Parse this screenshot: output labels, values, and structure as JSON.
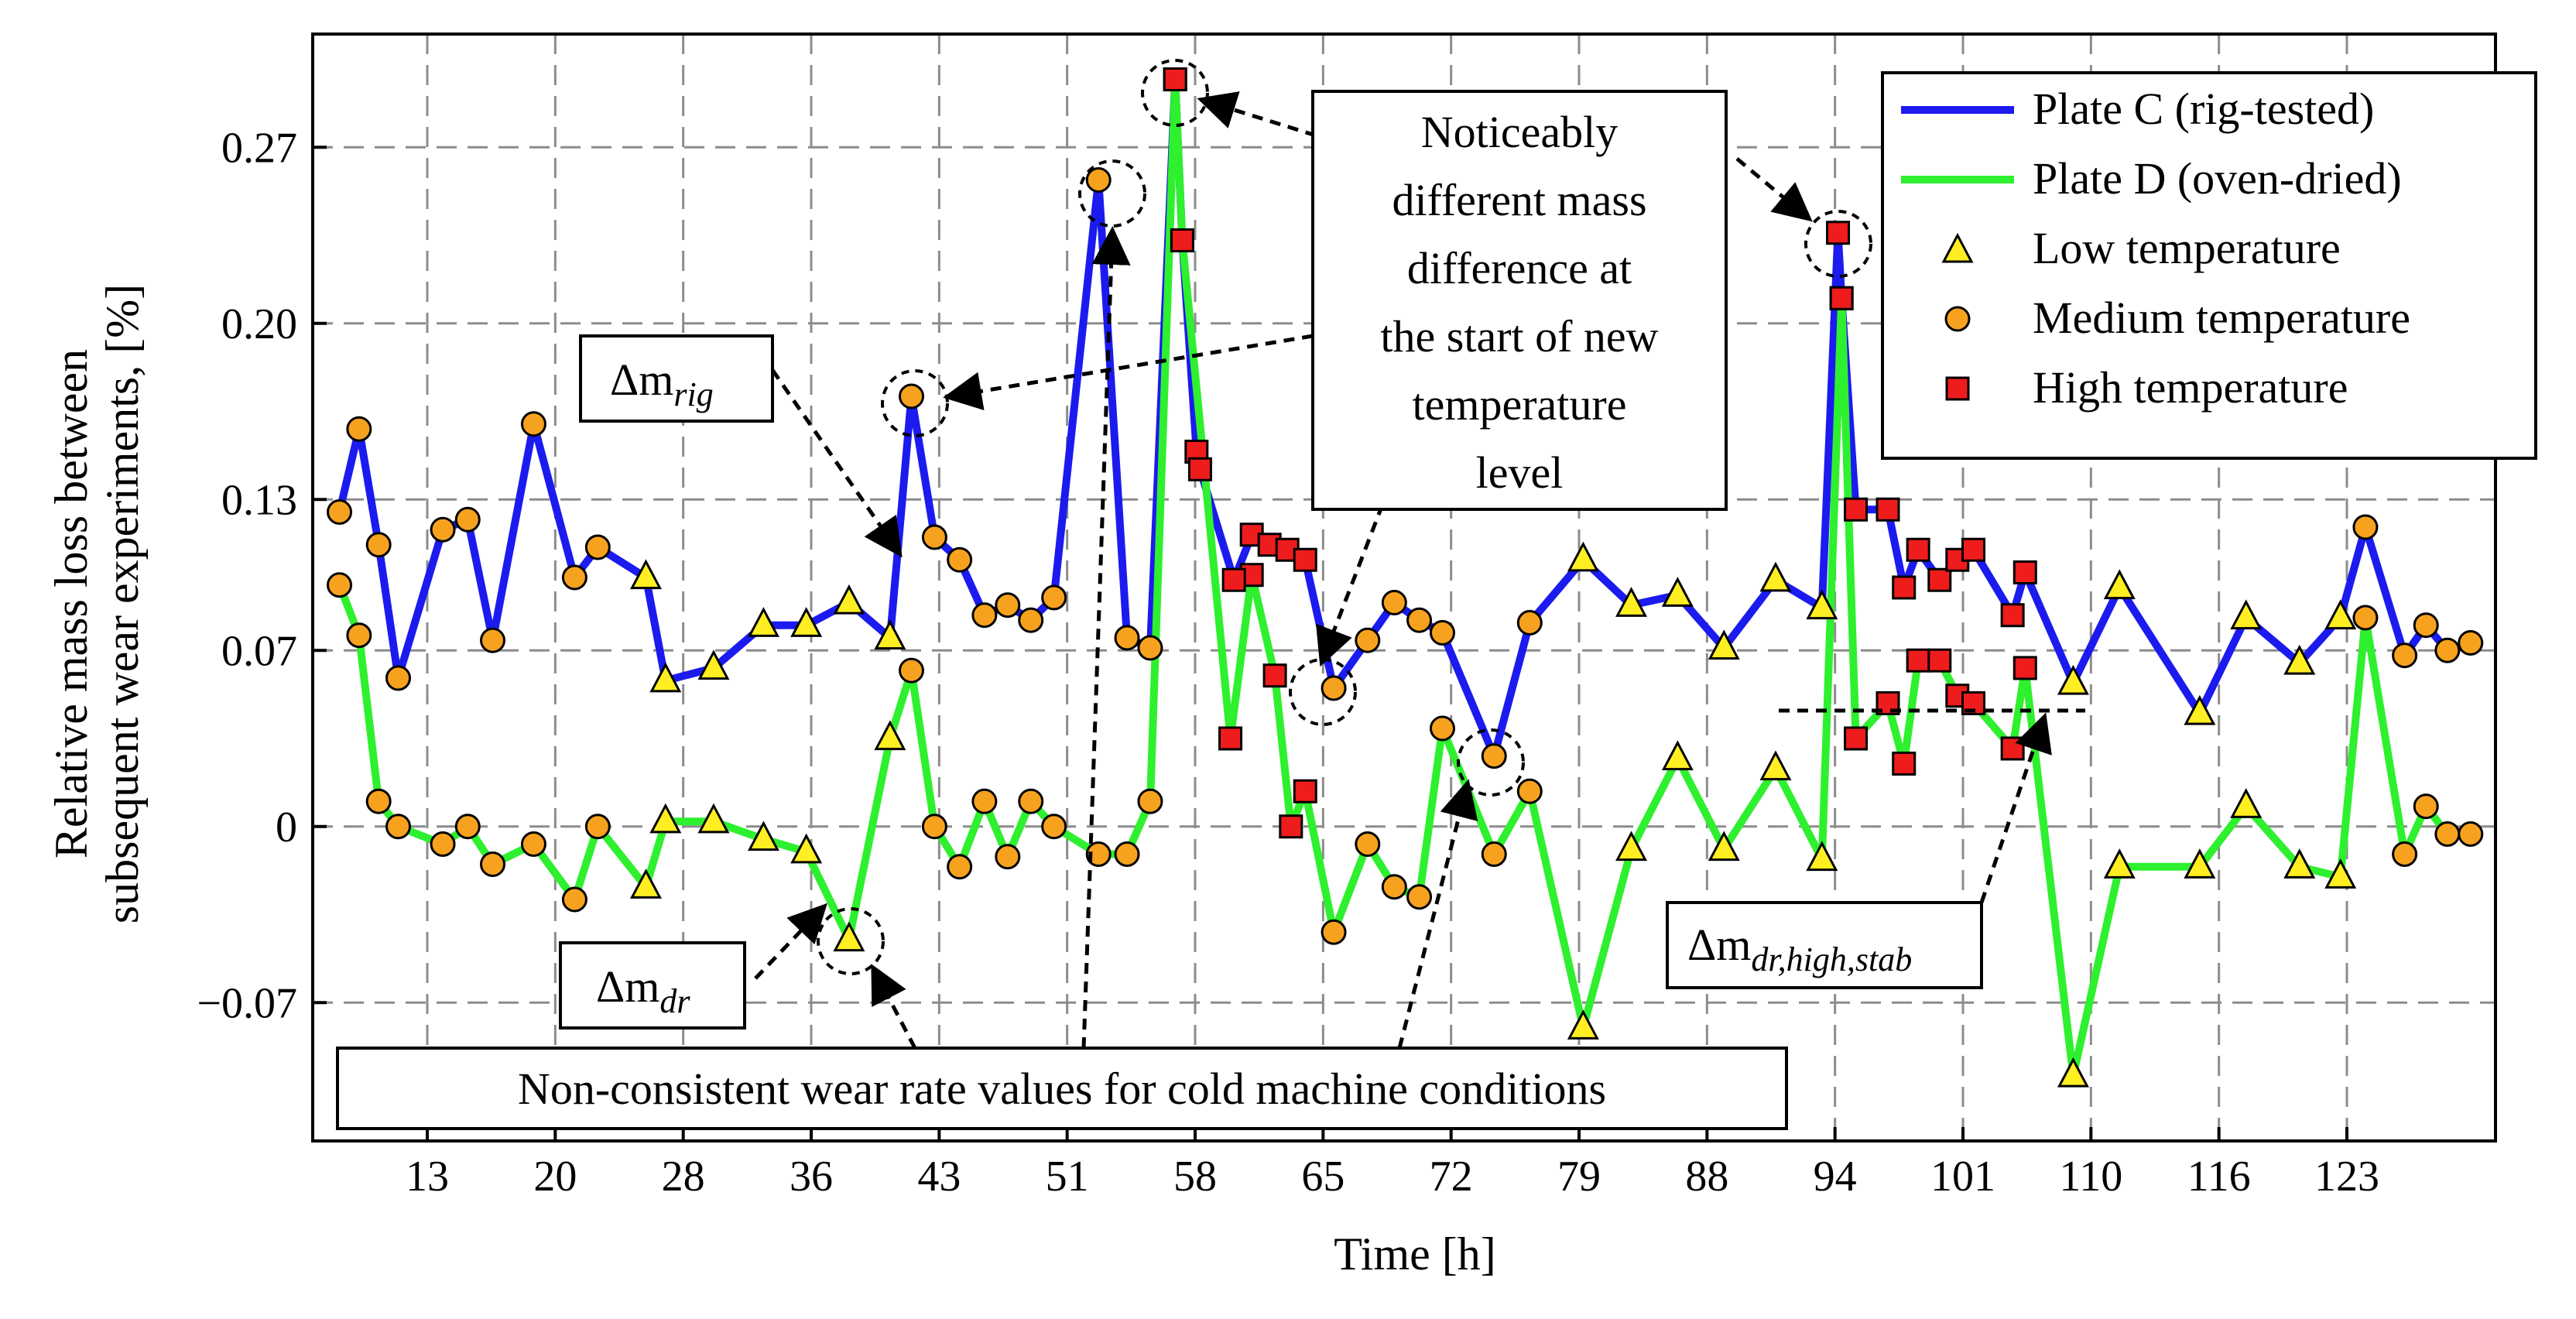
{
  "chart_data": {
    "type": "line",
    "title": "",
    "xlabel": "Time [h]",
    "ylabel_lines": [
      "Relative mass loss between",
      "subsequent wear experiments, [%]"
    ],
    "x_ticks": [
      "13",
      "20",
      "28",
      "36",
      "43",
      "51",
      "58",
      "65",
      "72",
      "79",
      "88",
      "94",
      "101",
      "110",
      "116",
      "123"
    ],
    "y_ticks": [
      {
        "value": 0.27,
        "label": "0.27"
      },
      {
        "value": 0.2,
        "label": "0.20"
      },
      {
        "value": 0.13,
        "label": "0.13"
      },
      {
        "value": 0.07,
        "label": "0.07"
      },
      {
        "value": 0,
        "label": "0"
      },
      {
        "value": -0.07,
        "label": "−0.07"
      }
    ],
    "xlim": [
      6.5,
      129
    ],
    "ylim": [
      -0.125,
      0.315
    ],
    "grid": true,
    "legend_position": "top-right",
    "legend": [
      {
        "label": "Plate C (rig-tested)",
        "kind": "line",
        "color": "#1b1bef"
      },
      {
        "label": "Plate D (oven-dried)",
        "kind": "line",
        "color": "#2ef02e"
      },
      {
        "label": "Low temperature",
        "kind": "triangle",
        "color": "#ffee22"
      },
      {
        "label": "Medium temperature",
        "kind": "circle",
        "color": "#f7a21f"
      },
      {
        "label": "High temperature",
        "kind": "square",
        "color": "#ee1c1c"
      }
    ],
    "series": [
      {
        "name": "Plate C (rig-tested)",
        "color": "#1b1bef",
        "points": [
          {
            "x": 8.0,
            "y": 0.125,
            "m": "M"
          },
          {
            "x": 9.1,
            "y": 0.158,
            "m": "M"
          },
          {
            "x": 10.2,
            "y": 0.112,
            "m": "M"
          },
          {
            "x": 11.3,
            "y": 0.059,
            "m": "M"
          },
          {
            "x": 13.8,
            "y": 0.118,
            "m": "M"
          },
          {
            "x": 15.2,
            "y": 0.122,
            "m": "M"
          },
          {
            "x": 16.6,
            "y": 0.074,
            "m": "M"
          },
          {
            "x": 18.9,
            "y": 0.16,
            "m": "M"
          },
          {
            "x": 21.2,
            "y": 0.099,
            "m": "M"
          },
          {
            "x": 22.5,
            "y": 0.111,
            "m": "M"
          },
          {
            "x": 25.2,
            "y": 0.099,
            "m": "L"
          },
          {
            "x": 26.3,
            "y": 0.058,
            "m": "L"
          },
          {
            "x": 29.0,
            "y": 0.063,
            "m": "L"
          },
          {
            "x": 31.8,
            "y": 0.08,
            "m": "L"
          },
          {
            "x": 34.2,
            "y": 0.08,
            "m": "L"
          },
          {
            "x": 36.6,
            "y": 0.089,
            "m": "L"
          },
          {
            "x": 38.9,
            "y": 0.075,
            "m": "L"
          },
          {
            "x": 40.1,
            "y": 0.171,
            "m": "M"
          },
          {
            "x": 41.4,
            "y": 0.115,
            "m": "M"
          },
          {
            "x": 42.8,
            "y": 0.106,
            "m": "M"
          },
          {
            "x": 44.2,
            "y": 0.084,
            "m": "M"
          },
          {
            "x": 45.5,
            "y": 0.088,
            "m": "M"
          },
          {
            "x": 46.8,
            "y": 0.082,
            "m": "M"
          },
          {
            "x": 48.1,
            "y": 0.091,
            "m": "M"
          },
          {
            "x": 50.6,
            "y": 0.257,
            "m": "M"
          },
          {
            "x": 52.2,
            "y": 0.075,
            "m": "M"
          },
          {
            "x": 53.5,
            "y": 0.071,
            "m": "M"
          },
          {
            "x": 54.9,
            "y": 0.297,
            "m": "H"
          },
          {
            "x": 55.3,
            "y": 0.233,
            "m": "H"
          },
          {
            "x": 56.1,
            "y": 0.149,
            "m": "H"
          },
          {
            "x": 56.3,
            "y": 0.142,
            "m": "H"
          },
          {
            "x": 58.2,
            "y": 0.098,
            "m": "H"
          },
          {
            "x": 59.2,
            "y": 0.116,
            "m": "H"
          },
          {
            "x": 60.2,
            "y": 0.112,
            "m": "H"
          },
          {
            "x": 61.2,
            "y": 0.11,
            "m": "H"
          },
          {
            "x": 62.2,
            "y": 0.106,
            "m": "H"
          },
          {
            "x": 63.8,
            "y": 0.055,
            "m": "M"
          },
          {
            "x": 65.7,
            "y": 0.074,
            "m": "M"
          },
          {
            "x": 67.2,
            "y": 0.089,
            "m": "M"
          },
          {
            "x": 68.6,
            "y": 0.082,
            "m": "M"
          },
          {
            "x": 69.9,
            "y": 0.077,
            "m": "M"
          },
          {
            "x": 72.8,
            "y": 0.028,
            "m": "M"
          },
          {
            "x": 74.8,
            "y": 0.081,
            "m": "M"
          },
          {
            "x": 77.8,
            "y": 0.106,
            "m": "L"
          },
          {
            "x": 80.5,
            "y": 0.088,
            "m": "L"
          },
          {
            "x": 83.1,
            "y": 0.092,
            "m": "L"
          },
          {
            "x": 85.7,
            "y": 0.071,
            "m": "L"
          },
          {
            "x": 88.6,
            "y": 0.098,
            "m": "L"
          },
          {
            "x": 91.2,
            "y": 0.087,
            "m": "L"
          },
          {
            "x": 92.1,
            "y": 0.236,
            "m": "H"
          },
          {
            "x": 92.3,
            "y": 0.21,
            "m": "H"
          },
          {
            "x": 93.1,
            "y": 0.126,
            "m": "H"
          },
          {
            "x": 94.9,
            "y": 0.126,
            "m": "H"
          },
          {
            "x": 95.8,
            "y": 0.095,
            "m": "H"
          },
          {
            "x": 96.6,
            "y": 0.11,
            "m": "H"
          },
          {
            "x": 97.8,
            "y": 0.098,
            "m": "H"
          },
          {
            "x": 98.8,
            "y": 0.106,
            "m": "H"
          },
          {
            "x": 99.7,
            "y": 0.11,
            "m": "H"
          },
          {
            "x": 101.9,
            "y": 0.084,
            "m": "H"
          },
          {
            "x": 102.6,
            "y": 0.101,
            "m": "H"
          },
          {
            "x": 105.3,
            "y": 0.057,
            "m": "L"
          },
          {
            "x": 107.9,
            "y": 0.095,
            "m": "L"
          },
          {
            "x": 112.4,
            "y": 0.045,
            "m": "L"
          },
          {
            "x": 115.0,
            "y": 0.083,
            "m": "L"
          },
          {
            "x": 118.0,
            "y": 0.065,
            "m": "L"
          },
          {
            "x": 120.3,
            "y": 0.083,
            "m": "L"
          },
          {
            "x": 121.7,
            "y": 0.119,
            "m": "M"
          },
          {
            "x": 123.9,
            "y": 0.068,
            "m": "M"
          },
          {
            "x": 125.1,
            "y": 0.08,
            "m": "M"
          },
          {
            "x": 126.3,
            "y": 0.07,
            "m": "M"
          },
          {
            "x": 127.6,
            "y": 0.073,
            "m": "M"
          }
        ]
      },
      {
        "name": "Plate D (oven-dried)",
        "color": "#2ef02e",
        "points": [
          {
            "x": 8.0,
            "y": 0.096,
            "m": "M"
          },
          {
            "x": 9.1,
            "y": 0.076,
            "m": "M"
          },
          {
            "x": 10.2,
            "y": 0.01,
            "m": "M"
          },
          {
            "x": 11.3,
            "y": 0.0,
            "m": "M"
          },
          {
            "x": 13.8,
            "y": -0.007,
            "m": "M"
          },
          {
            "x": 15.2,
            "y": 0.0,
            "m": "M"
          },
          {
            "x": 16.6,
            "y": -0.015,
            "m": "M"
          },
          {
            "x": 18.9,
            "y": -0.007,
            "m": "M"
          },
          {
            "x": 21.2,
            "y": -0.029,
            "m": "M"
          },
          {
            "x": 22.5,
            "y": 0.0,
            "m": "M"
          },
          {
            "x": 25.2,
            "y": -0.024,
            "m": "L"
          },
          {
            "x": 26.3,
            "y": 0.002,
            "m": "L"
          },
          {
            "x": 29.0,
            "y": 0.002,
            "m": "L"
          },
          {
            "x": 31.8,
            "y": -0.005,
            "m": "L"
          },
          {
            "x": 34.2,
            "y": -0.01,
            "m": "L"
          },
          {
            "x": 36.6,
            "y": -0.045,
            "m": "L"
          },
          {
            "x": 38.9,
            "y": 0.035,
            "m": "L"
          },
          {
            "x": 40.1,
            "y": 0.062,
            "m": "M"
          },
          {
            "x": 41.4,
            "y": 0.0,
            "m": "M"
          },
          {
            "x": 42.8,
            "y": -0.016,
            "m": "M"
          },
          {
            "x": 44.2,
            "y": 0.01,
            "m": "M"
          },
          {
            "x": 45.5,
            "y": -0.012,
            "m": "M"
          },
          {
            "x": 46.8,
            "y": 0.01,
            "m": "M"
          },
          {
            "x": 48.1,
            "y": 0.0,
            "m": "M"
          },
          {
            "x": 50.6,
            "y": -0.011,
            "m": "M"
          },
          {
            "x": 52.2,
            "y": -0.011,
            "m": "M"
          },
          {
            "x": 53.5,
            "y": 0.01,
            "m": "M"
          },
          {
            "x": 54.9,
            "y": 0.297,
            "m": "H"
          },
          {
            "x": 55.3,
            "y": 0.233,
            "m": "H"
          },
          {
            "x": 58.0,
            "y": 0.035,
            "m": "H"
          },
          {
            "x": 59.2,
            "y": 0.1,
            "m": "H"
          },
          {
            "x": 60.5,
            "y": 0.06,
            "m": "H"
          },
          {
            "x": 61.4,
            "y": 0.0,
            "m": "H"
          },
          {
            "x": 62.2,
            "y": 0.014,
            "m": "H"
          },
          {
            "x": 63.8,
            "y": -0.042,
            "m": "M"
          },
          {
            "x": 65.7,
            "y": -0.007,
            "m": "M"
          },
          {
            "x": 67.2,
            "y": -0.024,
            "m": "M"
          },
          {
            "x": 68.6,
            "y": -0.028,
            "m": "M"
          },
          {
            "x": 69.9,
            "y": 0.039,
            "m": "M"
          },
          {
            "x": 72.8,
            "y": -0.011,
            "m": "M"
          },
          {
            "x": 74.8,
            "y": 0.014,
            "m": "M"
          },
          {
            "x": 77.8,
            "y": -0.08,
            "m": "L"
          },
          {
            "x": 80.5,
            "y": -0.009,
            "m": "L"
          },
          {
            "x": 83.1,
            "y": 0.027,
            "m": "L"
          },
          {
            "x": 85.7,
            "y": -0.009,
            "m": "L"
          },
          {
            "x": 88.6,
            "y": 0.023,
            "m": "L"
          },
          {
            "x": 91.2,
            "y": -0.013,
            "m": "L"
          },
          {
            "x": 92.3,
            "y": 0.21,
            "m": "H"
          },
          {
            "x": 93.1,
            "y": 0.035,
            "m": "H"
          },
          {
            "x": 94.9,
            "y": 0.049,
            "m": "H"
          },
          {
            "x": 95.8,
            "y": 0.025,
            "m": "H"
          },
          {
            "x": 96.6,
            "y": 0.066,
            "m": "H"
          },
          {
            "x": 97.8,
            "y": 0.066,
            "m": "H"
          },
          {
            "x": 98.8,
            "y": 0.052,
            "m": "H"
          },
          {
            "x": 99.7,
            "y": 0.049,
            "m": "H"
          },
          {
            "x": 101.9,
            "y": 0.031,
            "m": "H"
          },
          {
            "x": 102.6,
            "y": 0.063,
            "m": "H"
          },
          {
            "x": 105.3,
            "y": -0.099,
            "m": "L"
          },
          {
            "x": 107.9,
            "y": -0.016,
            "m": "L"
          },
          {
            "x": 112.4,
            "y": -0.016,
            "m": "L"
          },
          {
            "x": 115.0,
            "y": 0.008,
            "m": "L"
          },
          {
            "x": 118.0,
            "y": -0.016,
            "m": "L"
          },
          {
            "x": 120.3,
            "y": -0.02,
            "m": "L"
          },
          {
            "x": 121.7,
            "y": 0.083,
            "m": "M"
          },
          {
            "x": 123.9,
            "y": -0.011,
            "m": "M"
          },
          {
            "x": 125.1,
            "y": 0.008,
            "m": "M"
          },
          {
            "x": 126.3,
            "y": -0.003,
            "m": "M"
          },
          {
            "x": 127.6,
            "y": -0.003,
            "m": "M"
          }
        ]
      }
    ],
    "annotations": {
      "noticeably_lines": [
        "Noticeably",
        "different mass",
        "difference at",
        "the start of new",
        "temperature",
        "level"
      ],
      "non_consistent": "Non-consistent wear rate values for cold machine conditions",
      "dm_rig": {
        "base": "Δm",
        "sub": "rig"
      },
      "dm_dr": {
        "base": "Δm",
        "sub": "dr"
      },
      "dm_dr_high_stab": {
        "base": "Δm",
        "sub": "dr,high,stab"
      }
    }
  }
}
